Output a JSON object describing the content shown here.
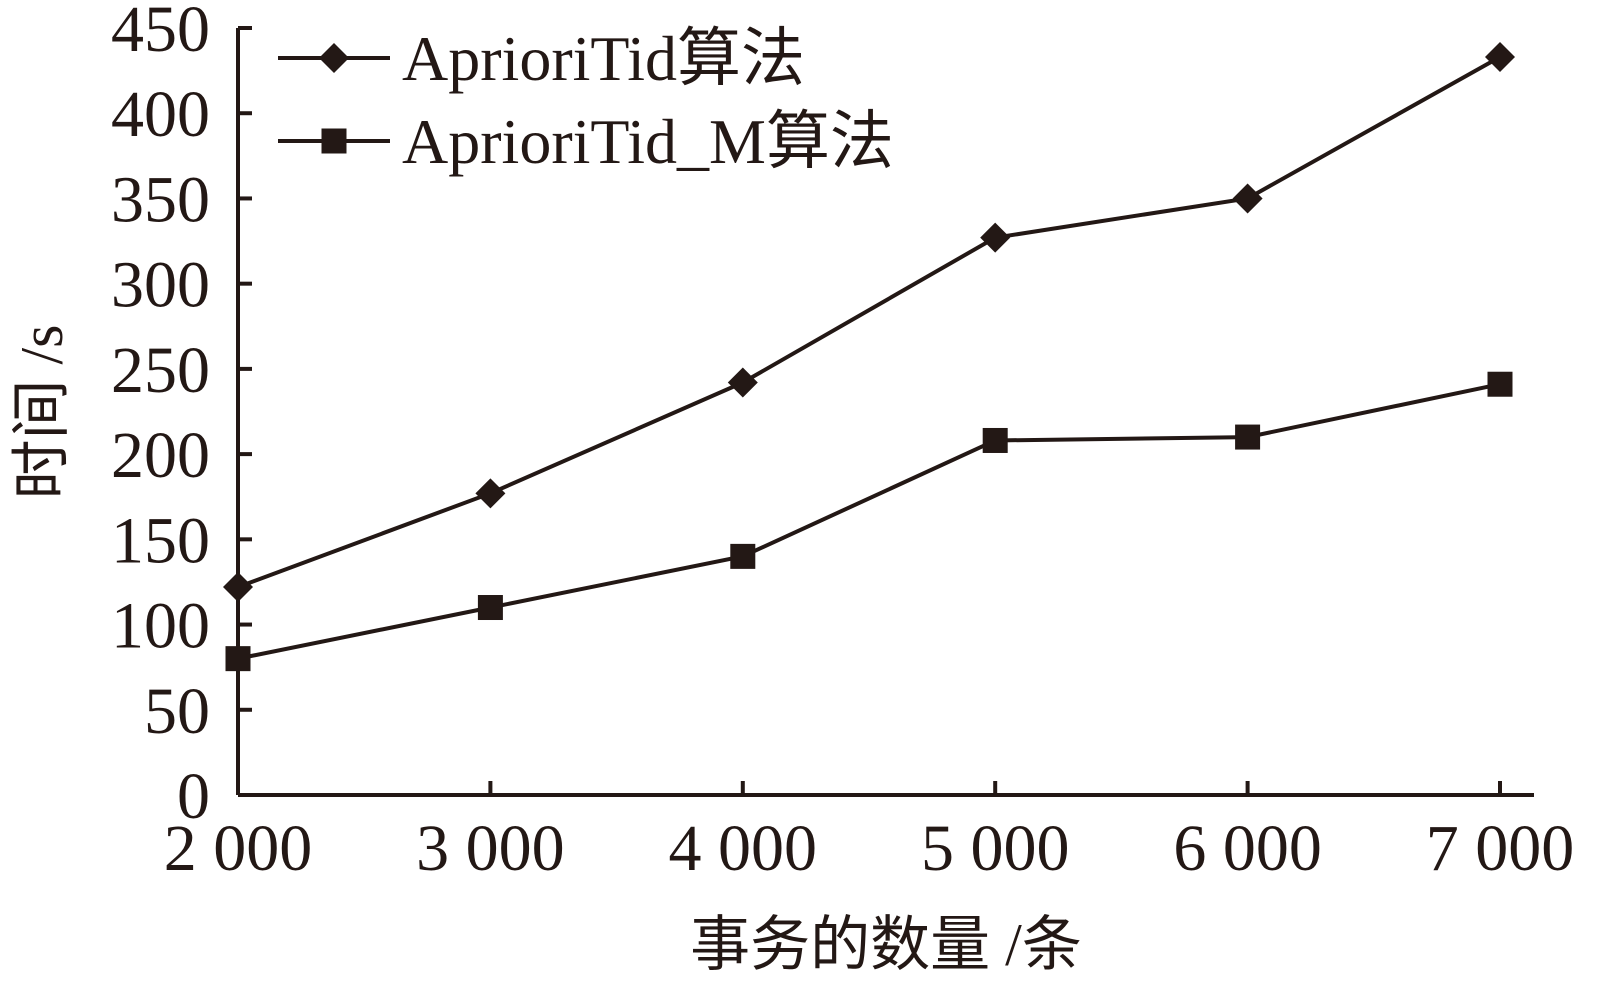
{
  "chart_data": {
    "type": "line",
    "x": [
      2000,
      3000,
      4000,
      5000,
      6000,
      7000
    ],
    "x_tick_labels": [
      "2 000",
      "3 000",
      "4 000",
      "5 000",
      "6 000",
      "7 000"
    ],
    "y_ticks": [
      0,
      50,
      100,
      150,
      200,
      250,
      300,
      350,
      400,
      450
    ],
    "ylim": [
      0,
      450
    ],
    "xlabel": "事务的数量 /条",
    "ylabel": "时间 /s",
    "legend_position": "top-left",
    "grid": false,
    "line_color": "#231815",
    "series": [
      {
        "name": "AprioriTid算法",
        "marker": "diamond",
        "values": [
          122,
          177,
          242,
          327,
          350,
          433
        ]
      },
      {
        "name": "AprioriTid_M算法",
        "marker": "square",
        "values": [
          80,
          110,
          140,
          208,
          210,
          241
        ]
      }
    ]
  }
}
